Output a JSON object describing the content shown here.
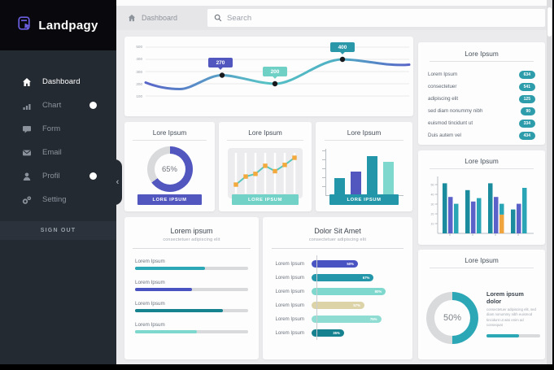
{
  "sidebar": {
    "logo_text": "Landpagy",
    "items": [
      {
        "id": "dashboard",
        "label": "Dashboard",
        "icon": "home",
        "active": true,
        "dot": false
      },
      {
        "id": "chart",
        "label": "Chart",
        "icon": "chart",
        "active": false,
        "dot": true
      },
      {
        "id": "form",
        "label": "Form",
        "icon": "form",
        "active": false,
        "dot": false
      },
      {
        "id": "email",
        "label": "Email",
        "icon": "email",
        "active": false,
        "dot": false
      },
      {
        "id": "profil",
        "label": "Profil",
        "icon": "profile",
        "active": false,
        "dot": true
      },
      {
        "id": "setting",
        "label": "Setting",
        "icon": "settings",
        "active": false,
        "dot": false
      }
    ],
    "signout_label": "SIGN OUT"
  },
  "topbar": {
    "breadcrumb": "Dashboard",
    "search_placeholder": "Search"
  },
  "main_chart": {
    "type": "line",
    "y_ticks": [
      "500",
      "400",
      "300",
      "200",
      "100"
    ],
    "line_values_approx": [
      210,
      170,
      270,
      200,
      400,
      355
    ],
    "points": [
      {
        "label": "270",
        "value": 270,
        "badge_color": "#5157be"
      },
      {
        "label": "200",
        "value": 200,
        "badge_color": "#6fd0c6"
      },
      {
        "label": "400",
        "value": 400,
        "badge_color": "#2b98a9"
      }
    ],
    "line_gradient": [
      "#5865c8",
      "#57c2c5",
      "#5865c8"
    ]
  },
  "cards": {
    "donut65": {
      "title": "Lore Ipsum",
      "percent": 65,
      "value_label": "65%",
      "color": "#5157be",
      "button_label": "LORE IPSUM",
      "button_color": "#5157be"
    },
    "trend": {
      "title": "Lore Ipsum",
      "type": "line",
      "values": [
        20,
        38,
        44,
        62,
        50,
        64,
        80
      ],
      "line_color": "#57c7bd",
      "marker_color": "#f3a93c",
      "button_label": "LORE IPSUM",
      "button_color": "#72d2c8"
    },
    "bars": {
      "title": "Lore Ipsum",
      "type": "bar",
      "values": [
        34,
        46,
        78,
        66
      ],
      "colors": [
        "#2397a9",
        "#5157be",
        "#2397a9",
        "#7fd8cd"
      ],
      "button_label": "LORE IPSUM",
      "button_color": "#2397a9"
    },
    "progress": {
      "title": "Lorem ipsum",
      "subtitle": "consectetuer adipiscing elit",
      "rows": [
        {
          "label": "Lorem Ipsum",
          "percent": 62,
          "color": "#2ba7b6"
        },
        {
          "label": "Lorem Ipsum",
          "percent": 50,
          "color": "#4a53c2"
        },
        {
          "label": "Lorem Ipsum",
          "percent": 78,
          "color": "#16828f"
        },
        {
          "label": "Lorem Ipsum",
          "percent": 55,
          "color": "#7fd8cd"
        }
      ]
    },
    "hbars": {
      "title": "Dolor Sit Amet",
      "subtitle": "consectetuer adipiscing elit",
      "rows": [
        {
          "label": "Lorem Ipsum",
          "percent": 50,
          "pct_label": "50%",
          "color": "#4a53c2"
        },
        {
          "label": "Lorem Ipsum",
          "percent": 67,
          "pct_label": "67%",
          "color": "#2397a9"
        },
        {
          "label": "Lorem Ipsum",
          "percent": 80,
          "pct_label": "80%",
          "color": "#7fd8cd"
        },
        {
          "label": "Lorem Ipsum",
          "percent": 57,
          "pct_label": "57%",
          "color": "#ddd3a9"
        },
        {
          "label": "Lorem Ipsum",
          "percent": 75,
          "pct_label": "75%",
          "color": "#8edcd2"
        },
        {
          "label": "Lorem Ipsum",
          "percent": 35,
          "pct_label": "35%",
          "color": "#16828f"
        }
      ]
    },
    "stats": {
      "title": "Lore Ipsum",
      "badge_color": "#2d9cab",
      "rows": [
        {
          "label": "Lorem Ipsum",
          "value": "634"
        },
        {
          "label": "consectetuer",
          "value": "541"
        },
        {
          "label": "adipiscing elit",
          "value": "125"
        },
        {
          "label": "sed diam nonummy nibh",
          "value": "90"
        },
        {
          "label": "euismod tincidunt ut",
          "value": "334"
        },
        {
          "label": "Duis autem vel",
          "value": "434"
        }
      ]
    },
    "grouped": {
      "title": "Lore Ipsum",
      "type": "bar",
      "colors": [
        "#1a8c9e",
        "#5a62c9",
        "#2aa5b6"
      ],
      "accent_color": "#f0a43e",
      "y_ticks": [
        "50",
        "40",
        "30",
        "20",
        "10"
      ],
      "groups": [
        [
          88,
          64,
          52
        ],
        [
          76,
          56,
          62
        ],
        [
          88,
          64,
          52
        ],
        [
          42,
          52,
          80
        ]
      ],
      "orange": {
        "group": 2,
        "bar": 2,
        "value": 33
      }
    },
    "donut50": {
      "title": "Lore Ipsum",
      "percent": 50,
      "value_label": "50%",
      "color": "#2ba7b6",
      "heading": "Lorem ipsum dolor",
      "body": "consectetuer adipiscing elit, sed diam nonummy nibh euismod tincidunt ut wisi enim ad consequat",
      "bar_percent": 60,
      "bar_color": "#2ba7b6"
    }
  }
}
